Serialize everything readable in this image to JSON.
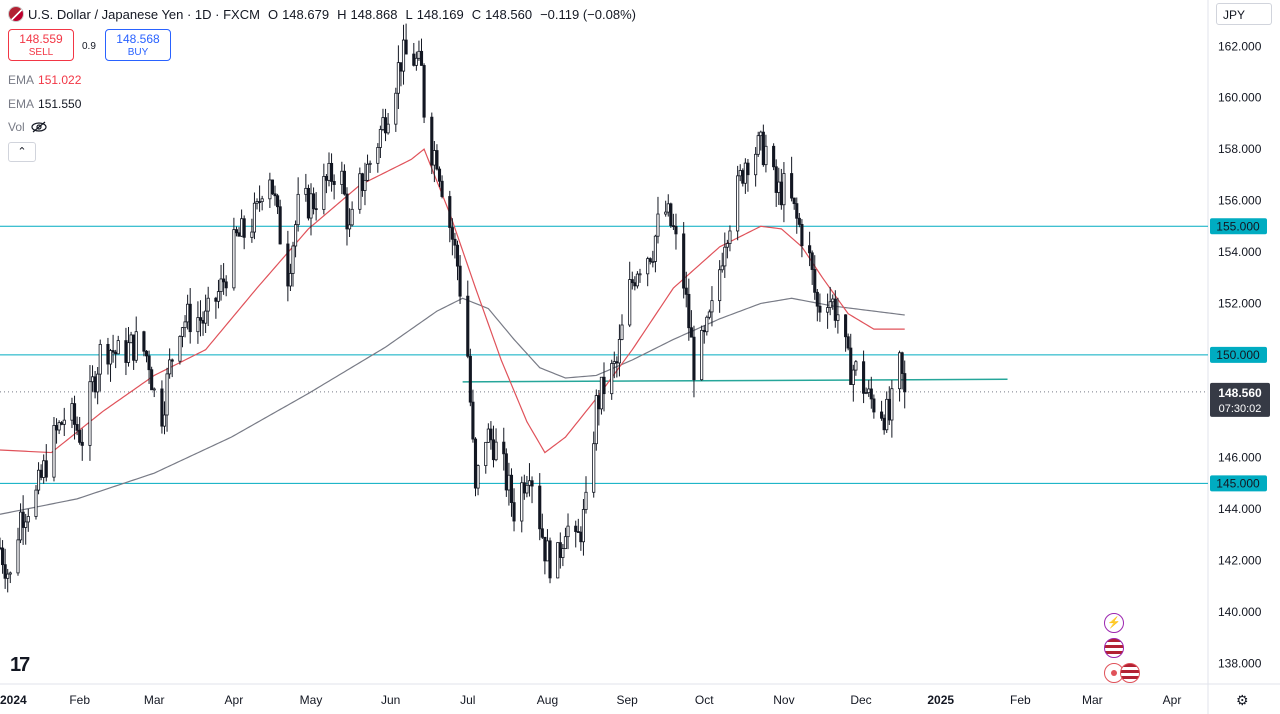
{
  "header": {
    "symbol": "U.S. Dollar / Japanese Yen · 1D · FXCM",
    "o_label": "O",
    "o_value": "148.679",
    "h_label": "H",
    "h_value": "148.868",
    "l_label": "L",
    "l_value": "148.169",
    "c_label": "C",
    "c_value": "148.560",
    "change": "−0.119 (−0.08%)"
  },
  "trade": {
    "sell_price": "148.559",
    "sell_label": "SELL",
    "spread": "0.9",
    "buy_price": "148.568",
    "buy_label": "BUY"
  },
  "indicators": {
    "ema1_label": "EMA",
    "ema1_value": "151.022",
    "ema2_label": "EMA",
    "ema2_value": "151.550",
    "vol_label": "Vol"
  },
  "currency_button": "JPY",
  "logo_text": "17",
  "colors": {
    "ema_fast": "#e0525a",
    "ema_slow": "#787b86",
    "hline": "#00acc1",
    "trendline": "#26a69a",
    "candle": "#131722",
    "price_label_bg": "#00acc1",
    "last_price_bg": "#363a45"
  },
  "chart_data": {
    "type": "candlestick",
    "y_ticks": [
      "138.000",
      "140.000",
      "142.000",
      "144.000",
      "146.000",
      "148.000",
      "150.000",
      "152.000",
      "154.000",
      "156.000",
      "158.000",
      "160.000",
      "162.000"
    ],
    "y_tick_values": [
      138,
      140,
      142,
      144,
      146,
      148,
      150,
      152,
      154,
      156,
      158,
      160,
      162
    ],
    "ylim": [
      137.2,
      163.8
    ],
    "x_labels": [
      "2024",
      "Feb",
      "Mar",
      "Apr",
      "May",
      "Jun",
      "Jul",
      "Aug",
      "Sep",
      "Oct",
      "Nov",
      "Dec",
      "2025",
      "Feb",
      "Mar",
      "Apr"
    ],
    "x_label_days": [
      0,
      31,
      60,
      91,
      121,
      152,
      182,
      213,
      244,
      274,
      305,
      335,
      366,
      397,
      425,
      456
    ],
    "xlim_days": [
      0,
      470
    ],
    "horizontal_lines": [
      {
        "value": 155.0,
        "label": "155.000"
      },
      {
        "value": 150.0,
        "label": "150.000"
      },
      {
        "value": 145.0,
        "label": "145.000"
      }
    ],
    "trendline": {
      "from": [
        180,
        148.95
      ],
      "to": [
        392,
        149.05
      ]
    },
    "last_price": {
      "value": 148.56,
      "label": "148.560",
      "countdown": "07:30:02"
    },
    "price_path": [
      [
        0,
        142.5
      ],
      [
        4,
        141.3
      ],
      [
        8,
        143.8
      ],
      [
        14,
        144.5
      ],
      [
        20,
        146.5
      ],
      [
        26,
        147.8
      ],
      [
        32,
        146.8
      ],
      [
        36,
        148.8
      ],
      [
        40,
        150.5
      ],
      [
        46,
        150.0
      ],
      [
        54,
        150.5
      ],
      [
        58,
        149.8
      ],
      [
        62,
        147.2
      ],
      [
        66,
        149.5
      ],
      [
        70,
        151.3
      ],
      [
        76,
        151.5
      ],
      [
        80,
        151.3
      ],
      [
        86,
        152.6
      ],
      [
        92,
        154.5
      ],
      [
        96,
        154.8
      ],
      [
        100,
        155.5
      ],
      [
        104,
        157.8
      ],
      [
        108,
        155.2
      ],
      [
        112,
        153.2
      ],
      [
        116,
        155.7
      ],
      [
        122,
        156.0
      ],
      [
        128,
        156.8
      ],
      [
        132,
        157.5
      ],
      [
        136,
        154.7
      ],
      [
        140,
        156.5
      ],
      [
        146,
        158.0
      ],
      [
        152,
        160.0
      ],
      [
        156,
        161.5
      ],
      [
        160,
        161.7
      ],
      [
        164,
        161.0
      ],
      [
        166,
        158.2
      ],
      [
        170,
        157.8
      ],
      [
        174,
        155.6
      ],
      [
        178,
        153.5
      ],
      [
        182,
        150.0
      ],
      [
        185,
        144.5
      ],
      [
        188,
        147.0
      ],
      [
        192,
        146.6
      ],
      [
        196,
        145.5
      ],
      [
        200,
        144.0
      ],
      [
        206,
        145.8
      ],
      [
        212,
        142.5
      ],
      [
        216,
        141.5
      ],
      [
        220,
        143.5
      ],
      [
        224,
        142.5
      ],
      [
        228,
        144.0
      ],
      [
        232,
        148.0
      ],
      [
        236,
        149.0
      ],
      [
        240,
        149.6
      ],
      [
        244,
        152.2
      ],
      [
        248,
        153.5
      ],
      [
        254,
        154.2
      ],
      [
        258,
        155.8
      ],
      [
        262,
        154.8
      ],
      [
        266,
        152.8
      ],
      [
        270,
        149.6
      ],
      [
        274,
        150.5
      ],
      [
        278,
        152.0
      ],
      [
        282,
        154.7
      ],
      [
        286,
        156.0
      ],
      [
        290,
        157.6
      ],
      [
        294,
        158.0
      ],
      [
        298,
        158.0
      ],
      [
        302,
        156.3
      ],
      [
        306,
        156.5
      ],
      [
        310,
        155.2
      ],
      [
        314,
        154.3
      ],
      [
        318,
        151.8
      ],
      [
        322,
        152.4
      ],
      [
        326,
        151.6
      ],
      [
        330,
        149.6
      ],
      [
        334,
        149.3
      ],
      [
        338,
        148.3
      ],
      [
        342,
        148.0
      ],
      [
        346,
        147.5
      ],
      [
        350,
        149.5
      ],
      [
        352,
        148.56
      ]
    ],
    "ema_fast_path": [
      [
        0,
        146.3
      ],
      [
        20,
        146.2
      ],
      [
        40,
        147.8
      ],
      [
        60,
        149.2
      ],
      [
        80,
        150.2
      ],
      [
        100,
        152.6
      ],
      [
        120,
        154.9
      ],
      [
        140,
        156.6
      ],
      [
        160,
        157.6
      ],
      [
        165,
        158.0
      ],
      [
        175,
        155.5
      ],
      [
        185,
        152.6
      ],
      [
        195,
        149.8
      ],
      [
        205,
        147.4
      ],
      [
        212,
        146.2
      ],
      [
        220,
        146.8
      ],
      [
        232,
        148.3
      ],
      [
        246,
        150.2
      ],
      [
        262,
        152.6
      ],
      [
        280,
        154.2
      ],
      [
        296,
        155.0
      ],
      [
        304,
        154.9
      ],
      [
        312,
        154.2
      ],
      [
        320,
        153.0
      ],
      [
        330,
        151.6
      ],
      [
        340,
        151.0
      ],
      [
        352,
        151.0
      ]
    ],
    "ema_slow_path": [
      [
        0,
        143.8
      ],
      [
        30,
        144.4
      ],
      [
        60,
        145.4
      ],
      [
        90,
        146.8
      ],
      [
        120,
        148.5
      ],
      [
        150,
        150.3
      ],
      [
        170,
        151.7
      ],
      [
        180,
        152.2
      ],
      [
        190,
        151.8
      ],
      [
        200,
        150.6
      ],
      [
        210,
        149.5
      ],
      [
        220,
        149.1
      ],
      [
        232,
        149.2
      ],
      [
        246,
        149.8
      ],
      [
        262,
        150.6
      ],
      [
        280,
        151.4
      ],
      [
        296,
        152.0
      ],
      [
        308,
        152.2
      ],
      [
        324,
        151.9
      ],
      [
        340,
        151.7
      ],
      [
        352,
        151.55
      ]
    ],
    "title": "U.S. Dollar / Japanese Yen · 1D · FXCM"
  }
}
